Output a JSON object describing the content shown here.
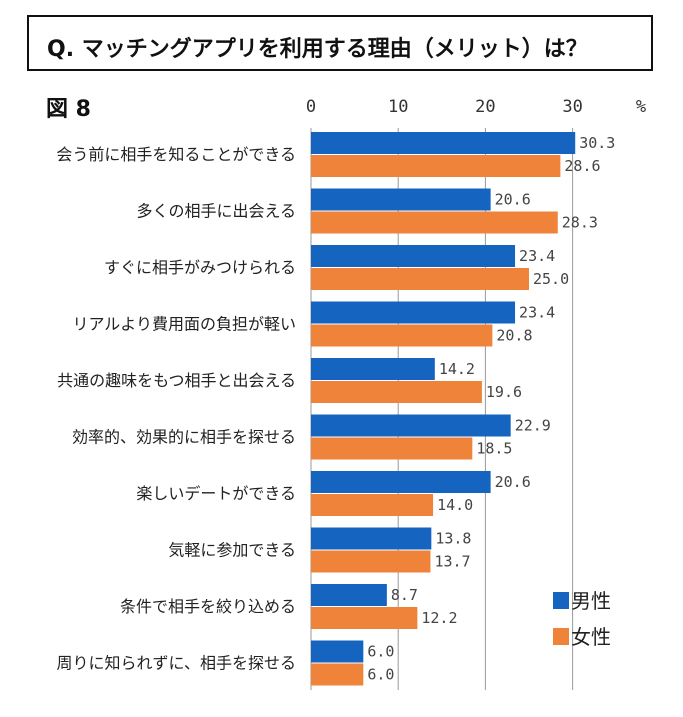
{
  "title": "Q. マッチングアプリを利用する理由（メリット）は？",
  "figure_label": "図 8",
  "colors": {
    "male": "#1565C0",
    "female": "#F0833A",
    "axis": "#999999"
  },
  "chart_data": {
    "type": "bar",
    "orientation": "horizontal",
    "title": "Q. マッチングアプリを利用する理由（メリット）は？",
    "unit_label": "%",
    "xlim": [
      0,
      30
    ],
    "ticks": [
      0,
      10,
      20,
      30
    ],
    "categories": [
      "会う前に相手を知ることができる",
      "多くの相手に出会える",
      "すぐに相手がみつけられる",
      "リアルより費用面の負担が軽い",
      "共通の趣味をもつ相手と出会える",
      "効率的、効果的に相手を探せる",
      "楽しいデートができる",
      "気軽に参加できる",
      "条件で相手を絞り込める",
      "周りに知られずに、相手を探せる"
    ],
    "series": [
      {
        "name": "男性",
        "values": [
          30.3,
          20.6,
          23.4,
          23.4,
          14.2,
          22.9,
          20.6,
          13.8,
          8.7,
          6.0
        ]
      },
      {
        "name": "女性",
        "values": [
          28.6,
          28.3,
          25.0,
          20.8,
          19.6,
          18.5,
          14.0,
          13.7,
          12.2,
          6.0
        ]
      }
    ],
    "legend_position": "bottom-right"
  }
}
